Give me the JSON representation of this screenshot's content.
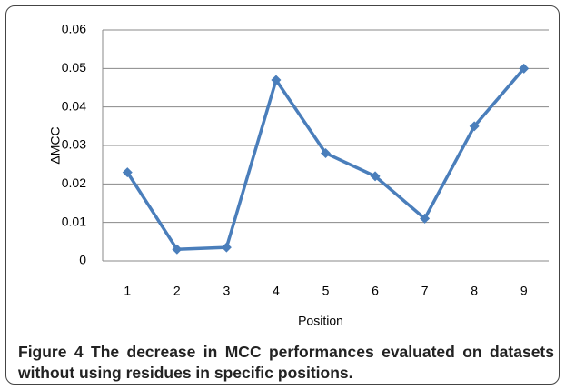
{
  "chart_data": {
    "type": "line",
    "categories": [
      "1",
      "2",
      "3",
      "4",
      "5",
      "6",
      "7",
      "8",
      "9"
    ],
    "series": [
      {
        "name": "ΔMCC",
        "color": "#4a7ebb",
        "values": [
          0.023,
          0.003,
          0.0035,
          0.047,
          0.028,
          0.022,
          0.011,
          0.035,
          0.05
        ]
      }
    ],
    "ylim": [
      0,
      0.06
    ],
    "yticks": [
      0,
      0.01,
      0.02,
      0.03,
      0.04,
      0.05,
      0.06
    ],
    "grid": true,
    "xlabel": "Position",
    "ylabel": "ΔMCC",
    "caption": {
      "label": "Figure 4",
      "text": "The decrease in MCC performances evaluated on datasets without using residues in specific positions."
    }
  }
}
